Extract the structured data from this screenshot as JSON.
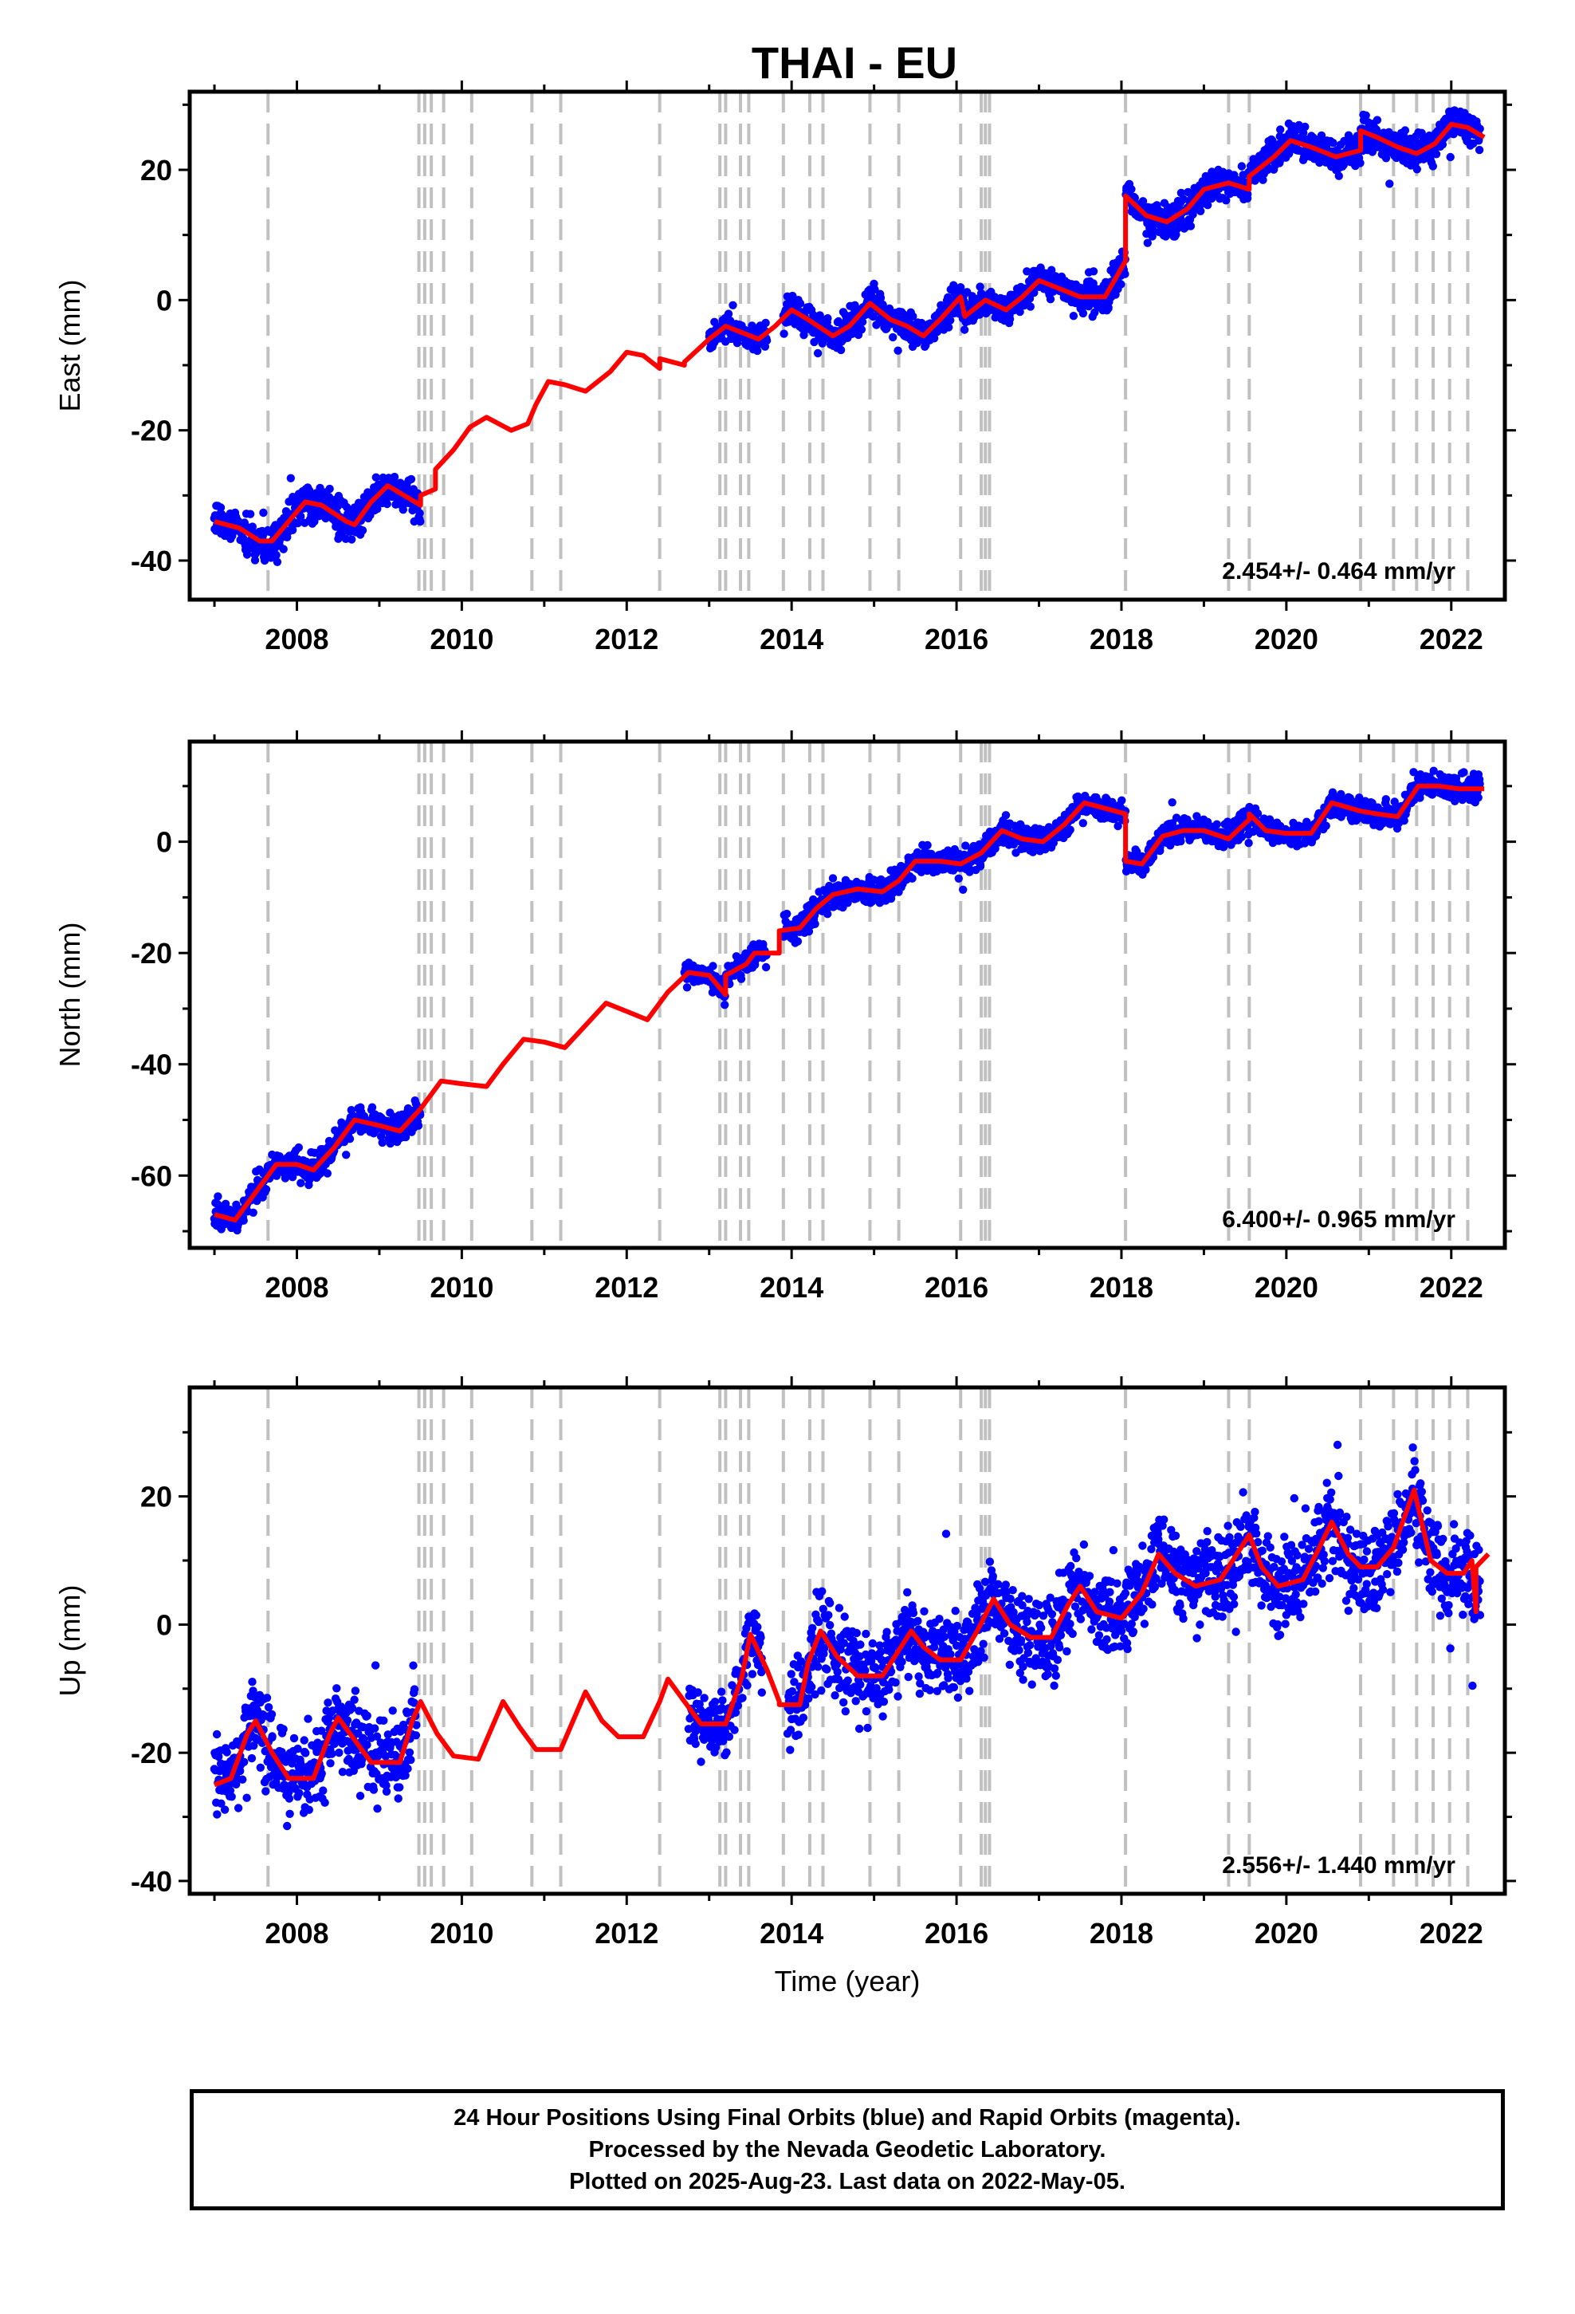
{
  "figure": {
    "title": "THAI - EU",
    "footer": {
      "line1": "24 Hour Positions Using Final Orbits (blue) and Rapid Orbits (magenta).",
      "line2": "Processed by the Nevada Geodetic Laboratory.",
      "line3": "Plotted on 2025-Aug-23. Last data on 2022-May-05."
    },
    "colors": {
      "final_orbits": "#0000ff",
      "model": "#ff0000",
      "event_lines": "#c0c0c0"
    }
  },
  "chart_data": [
    {
      "type": "scatter",
      "ylabel": "East (mm)",
      "xlabel": "",
      "xlim": [
        2006.7,
        2022.65
      ],
      "ylim": [
        -46,
        32
      ],
      "xticks": [
        2008,
        2010,
        2012,
        2014,
        2016,
        2018,
        2020,
        2022
      ],
      "yticks": [
        -40,
        -20,
        0,
        20
      ],
      "rate_label": "2.454+/- 0.464 mm/yr",
      "event_lines": [
        2007.65,
        2009.48,
        2009.55,
        2009.63,
        2009.78,
        2010.12,
        2010.85,
        2011.2,
        2012.4,
        2013.13,
        2013.2,
        2013.38,
        2013.48,
        2013.9,
        2014.22,
        2014.38,
        2014.95,
        2015.3,
        2016.05,
        2016.3,
        2016.35,
        2016.4,
        2018.05,
        2019.3,
        2019.55,
        2020.9,
        2021.3,
        2021.58,
        2021.78,
        2021.98,
        2022.2
      ],
      "model": [
        [
          2007.0,
          -34
        ],
        [
          2007.3,
          -35
        ],
        [
          2007.55,
          -37
        ],
        [
          2007.7,
          -37
        ],
        [
          2007.9,
          -34
        ],
        [
          2008.1,
          -31
        ],
        [
          2008.3,
          -31.5
        ],
        [
          2008.6,
          -34
        ],
        [
          2008.7,
          -34.5
        ],
        [
          2008.9,
          -31
        ],
        [
          2009.1,
          -28.5
        ],
        [
          2009.3,
          -30
        ],
        [
          2009.5,
          -31.5
        ],
        [
          2009.5,
          -30
        ],
        [
          2009.68,
          -29
        ],
        [
          2009.68,
          -26
        ],
        [
          2009.9,
          -23
        ],
        [
          2010.1,
          -19.5
        ],
        [
          2010.3,
          -18
        ],
        [
          2010.6,
          -20
        ],
        [
          2010.8,
          -19
        ],
        [
          2010.9,
          -16
        ],
        [
          2011.05,
          -12.5
        ],
        [
          2011.25,
          -13
        ],
        [
          2011.5,
          -14
        ],
        [
          2011.8,
          -11
        ],
        [
          2012.0,
          -8
        ],
        [
          2012.2,
          -8.5
        ],
        [
          2012.4,
          -10.5
        ],
        [
          2012.4,
          -9
        ],
        [
          2012.7,
          -10
        ],
        [
          2012.7,
          -9.5
        ],
        [
          2013.0,
          -6
        ],
        [
          2013.2,
          -4
        ],
        [
          2013.4,
          -5
        ],
        [
          2013.6,
          -6
        ],
        [
          2013.8,
          -4
        ],
        [
          2014.0,
          -1.5
        ],
        [
          2014.2,
          -3
        ],
        [
          2014.5,
          -5.5
        ],
        [
          2014.7,
          -4
        ],
        [
          2014.95,
          -0.5
        ],
        [
          2015.2,
          -3
        ],
        [
          2015.4,
          -4
        ],
        [
          2015.6,
          -5.5
        ],
        [
          2015.8,
          -3
        ],
        [
          2016.05,
          0.5
        ],
        [
          2016.1,
          -2.5
        ],
        [
          2016.2,
          -1.5
        ],
        [
          2016.35,
          0
        ],
        [
          2016.6,
          -1.5
        ],
        [
          2016.8,
          0.5
        ],
        [
          2017.0,
          3
        ],
        [
          2017.2,
          2
        ],
        [
          2017.5,
          0.5
        ],
        [
          2017.8,
          0.5
        ],
        [
          2018.05,
          6
        ],
        [
          2018.05,
          16
        ],
        [
          2018.3,
          13
        ],
        [
          2018.55,
          12
        ],
        [
          2018.8,
          14
        ],
        [
          2019.0,
          17
        ],
        [
          2019.3,
          18
        ],
        [
          2019.55,
          17
        ],
        [
          2019.55,
          19
        ],
        [
          2019.85,
          22
        ],
        [
          2020.05,
          24.5
        ],
        [
          2020.3,
          23.5
        ],
        [
          2020.6,
          22
        ],
        [
          2020.9,
          23
        ],
        [
          2020.9,
          26
        ],
        [
          2021.1,
          25
        ],
        [
          2021.35,
          23.5
        ],
        [
          2021.58,
          22.5
        ],
        [
          2021.8,
          24
        ],
        [
          2022.0,
          27
        ],
        [
          2022.2,
          26.5
        ],
        [
          2022.4,
          25
        ]
      ],
      "scatter_segments": [
        {
          "x0": 2007.0,
          "x1": 2009.5,
          "spread": 2.2
        },
        {
          "x0": 2013.0,
          "x1": 2013.7,
          "spread": 1.6
        },
        {
          "x0": 2013.9,
          "x1": 2022.35,
          "spread": 2.0
        }
      ]
    },
    {
      "type": "scatter",
      "ylabel": "North (mm)",
      "xlabel": "",
      "xlim": [
        2006.7,
        2022.65
      ],
      "ylim": [
        -73,
        18
      ],
      "xticks": [
        2008,
        2010,
        2012,
        2014,
        2016,
        2018,
        2020,
        2022
      ],
      "yticks": [
        -60,
        -40,
        -20,
        0
      ],
      "rate_label": "6.400+/- 0.965 mm/yr",
      "event_lines": [
        2007.65,
        2009.48,
        2009.55,
        2009.63,
        2009.78,
        2010.12,
        2010.85,
        2011.2,
        2012.4,
        2013.13,
        2013.2,
        2013.38,
        2013.48,
        2013.9,
        2014.22,
        2014.38,
        2014.95,
        2015.3,
        2016.05,
        2016.3,
        2016.35,
        2016.4,
        2018.05,
        2019.3,
        2019.55,
        2020.9,
        2021.3,
        2021.58,
        2021.78,
        2021.98,
        2022.2
      ],
      "model": [
        [
          2007.0,
          -67
        ],
        [
          2007.25,
          -68
        ],
        [
          2007.5,
          -63
        ],
        [
          2007.75,
          -58
        ],
        [
          2008.0,
          -58
        ],
        [
          2008.2,
          -59
        ],
        [
          2008.45,
          -55
        ],
        [
          2008.7,
          -50
        ],
        [
          2009.0,
          -51
        ],
        [
          2009.25,
          -52
        ],
        [
          2009.5,
          -48
        ],
        [
          2009.75,
          -43
        ],
        [
          2010.0,
          -43.5
        ],
        [
          2010.3,
          -44
        ],
        [
          2010.5,
          -40
        ],
        [
          2010.75,
          -35.5
        ],
        [
          2011.0,
          -36
        ],
        [
          2011.25,
          -37
        ],
        [
          2011.5,
          -33
        ],
        [
          2011.75,
          -29
        ],
        [
          2012.0,
          -30.5
        ],
        [
          2012.25,
          -32
        ],
        [
          2012.5,
          -27
        ],
        [
          2012.75,
          -23.5
        ],
        [
          2013.0,
          -24
        ],
        [
          2013.2,
          -27.5
        ],
        [
          2013.2,
          -24
        ],
        [
          2013.45,
          -22
        ],
        [
          2013.55,
          -20
        ],
        [
          2013.85,
          -20
        ],
        [
          2013.85,
          -16
        ],
        [
          2014.1,
          -15.5
        ],
        [
          2014.3,
          -12
        ],
        [
          2014.5,
          -9.5
        ],
        [
          2014.8,
          -8.5
        ],
        [
          2015.1,
          -9
        ],
        [
          2015.3,
          -7
        ],
        [
          2015.5,
          -3.5
        ],
        [
          2015.8,
          -3.5
        ],
        [
          2016.05,
          -4
        ],
        [
          2016.3,
          -2
        ],
        [
          2016.55,
          2
        ],
        [
          2016.8,
          0.5
        ],
        [
          2017.05,
          0
        ],
        [
          2017.3,
          3
        ],
        [
          2017.55,
          7
        ],
        [
          2017.8,
          6
        ],
        [
          2018.05,
          5
        ],
        [
          2018.05,
          -3.5
        ],
        [
          2018.25,
          -4
        ],
        [
          2018.5,
          1
        ],
        [
          2018.75,
          2
        ],
        [
          2019.0,
          2
        ],
        [
          2019.3,
          0.5
        ],
        [
          2019.55,
          4
        ],
        [
          2019.55,
          5
        ],
        [
          2019.75,
          2
        ],
        [
          2020.0,
          1.5
        ],
        [
          2020.3,
          1.5
        ],
        [
          2020.55,
          7
        ],
        [
          2020.9,
          5.5
        ],
        [
          2021.1,
          5
        ],
        [
          2021.35,
          4.5
        ],
        [
          2021.6,
          10
        ],
        [
          2021.85,
          10
        ],
        [
          2022.1,
          9.5
        ],
        [
          2022.4,
          9.5
        ]
      ],
      "scatter_segments": [
        {
          "x0": 2007.0,
          "x1": 2009.5,
          "spread": 2.0
        },
        {
          "x0": 2012.7,
          "x1": 2013.7,
          "spread": 1.6
        },
        {
          "x0": 2013.9,
          "x1": 2022.35,
          "spread": 1.8
        }
      ]
    },
    {
      "type": "scatter",
      "ylabel": "Up (mm)",
      "xlabel": "Time (year)",
      "xlim": [
        2006.7,
        2022.65
      ],
      "ylim": [
        -42,
        37
      ],
      "xticks": [
        2008,
        2010,
        2012,
        2014,
        2016,
        2018,
        2020,
        2022
      ],
      "yticks": [
        -40,
        -20,
        0,
        20
      ],
      "rate_label": "2.556+/- 1.440 mm/yr",
      "event_lines": [
        2007.65,
        2009.48,
        2009.55,
        2009.63,
        2009.78,
        2010.12,
        2010.85,
        2011.2,
        2012.4,
        2013.13,
        2013.2,
        2013.38,
        2013.48,
        2013.9,
        2014.22,
        2014.38,
        2014.95,
        2015.3,
        2016.05,
        2016.3,
        2016.35,
        2016.4,
        2018.05,
        2019.3,
        2019.55,
        2020.9,
        2021.3,
        2021.58,
        2021.78,
        2021.98,
        2022.2
      ],
      "model": [
        [
          2007.0,
          -25
        ],
        [
          2007.2,
          -24
        ],
        [
          2007.4,
          -17
        ],
        [
          2007.5,
          -15
        ],
        [
          2007.7,
          -20
        ],
        [
          2007.9,
          -24
        ],
        [
          2008.2,
          -24
        ],
        [
          2008.4,
          -17
        ],
        [
          2008.5,
          -14.5
        ],
        [
          2008.7,
          -18
        ],
        [
          2008.9,
          -21.5
        ],
        [
          2009.25,
          -21.5
        ],
        [
          2009.4,
          -15
        ],
        [
          2009.5,
          -12
        ],
        [
          2009.7,
          -17
        ],
        [
          2009.9,
          -20.5
        ],
        [
          2010.2,
          -21
        ],
        [
          2010.4,
          -15
        ],
        [
          2010.5,
          -12
        ],
        [
          2010.7,
          -16
        ],
        [
          2010.9,
          -19.5
        ],
        [
          2011.2,
          -19.5
        ],
        [
          2011.4,
          -13.5
        ],
        [
          2011.5,
          -10.5
        ],
        [
          2011.7,
          -15
        ],
        [
          2011.9,
          -17.5
        ],
        [
          2012.2,
          -17.5
        ],
        [
          2012.4,
          -12
        ],
        [
          2012.5,
          -8.5
        ],
        [
          2012.7,
          -12
        ],
        [
          2012.9,
          -15.5
        ],
        [
          2013.2,
          -15.5
        ],
        [
          2013.4,
          -8
        ],
        [
          2013.5,
          -1.5
        ],
        [
          2013.7,
          -7
        ],
        [
          2013.85,
          -12
        ],
        [
          2013.85,
          -12.5
        ],
        [
          2014.1,
          -12.5
        ],
        [
          2014.2,
          -6
        ],
        [
          2014.35,
          -1
        ],
        [
          2014.55,
          -5
        ],
        [
          2014.8,
          -8
        ],
        [
          2015.1,
          -8
        ],
        [
          2015.3,
          -4
        ],
        [
          2015.45,
          -1
        ],
        [
          2015.6,
          -3.5
        ],
        [
          2015.8,
          -5.5
        ],
        [
          2016.05,
          -5.5
        ],
        [
          2016.25,
          -1
        ],
        [
          2016.45,
          4
        ],
        [
          2016.65,
          0
        ],
        [
          2016.9,
          -2
        ],
        [
          2017.15,
          -2
        ],
        [
          2017.35,
          3
        ],
        [
          2017.5,
          6
        ],
        [
          2017.7,
          2
        ],
        [
          2018.0,
          1
        ],
        [
          2018.25,
          5
        ],
        [
          2018.45,
          11
        ],
        [
          2018.65,
          8
        ],
        [
          2018.9,
          6
        ],
        [
          2019.2,
          7
        ],
        [
          2019.4,
          11
        ],
        [
          2019.55,
          14
        ],
        [
          2019.7,
          9
        ],
        [
          2019.9,
          6
        ],
        [
          2020.2,
          7
        ],
        [
          2020.4,
          12
        ],
        [
          2020.55,
          16
        ],
        [
          2020.75,
          11
        ],
        [
          2020.9,
          9
        ],
        [
          2021.1,
          9
        ],
        [
          2021.3,
          12
        ],
        [
          2021.55,
          21
        ],
        [
          2021.75,
          10
        ],
        [
          2021.95,
          8
        ],
        [
          2022.15,
          8
        ],
        [
          2022.25,
          10
        ],
        [
          2022.3,
          2
        ],
        [
          2022.3,
          9
        ],
        [
          2022.45,
          11
        ]
      ],
      "scatter_segments": [
        {
          "x0": 2007.0,
          "x1": 2009.45,
          "spread": 5.0
        },
        {
          "x0": 2012.75,
          "x1": 2013.65,
          "spread": 4.0
        },
        {
          "x0": 2013.95,
          "x1": 2022.35,
          "spread": 5.5
        }
      ]
    }
  ]
}
